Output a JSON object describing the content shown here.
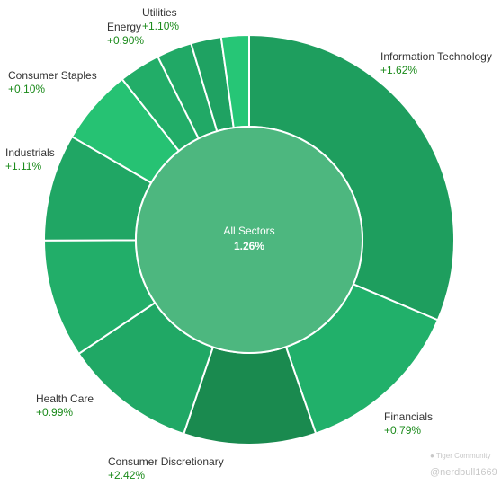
{
  "chart_data": {
    "type": "pie",
    "center_label": "All Sectors",
    "center_value": "1.26%",
    "slices": [
      {
        "name": "Information Technology",
        "change": "+1.62%",
        "weight": 31.6,
        "color": "#1e9e5e"
      },
      {
        "name": "Financials",
        "change": "+0.79%",
        "weight": 13.4,
        "color": "#21b06a"
      },
      {
        "name": "Consumer Discretionary",
        "change": "+2.42%",
        "weight": 10.5,
        "color": "#1a8a4f"
      },
      {
        "name": "Health Care",
        "change": "+0.99%",
        "weight": 10.5,
        "color": "#20a865"
      },
      {
        "name": "",
        "change": "",
        "weight": 9.4,
        "color": "#22ae69"
      },
      {
        "name": "Industrials",
        "change": "+1.11%",
        "weight": 8.5,
        "color": "#20a664"
      },
      {
        "name": "Consumer Staples",
        "change": "+0.10%",
        "weight": 6.0,
        "color": "#26c273"
      },
      {
        "name": "Energy",
        "change": "+0.90%",
        "weight": 3.3,
        "color": "#22ad68"
      },
      {
        "name": "",
        "change": "",
        "weight": 2.8,
        "color": "#21a966"
      },
      {
        "name": "",
        "change": "",
        "weight": 2.4,
        "color": "#1fa262"
      },
      {
        "name": "Utilities",
        "change": "+1.10%",
        "weight": 2.2,
        "color": "#26c676"
      }
    ]
  },
  "watermark": {
    "logo_text": "Tiger Community",
    "handle": "@nerdbull1669"
  }
}
